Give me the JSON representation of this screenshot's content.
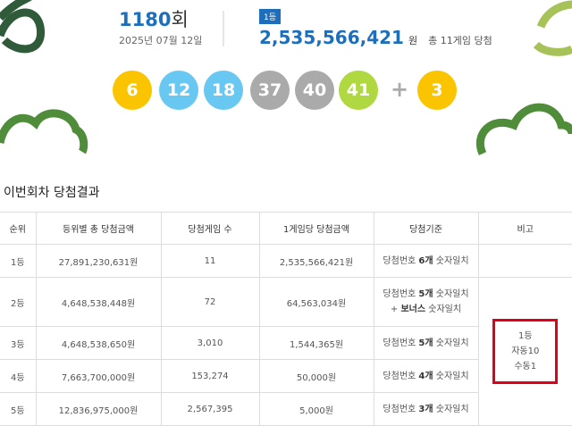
{
  "header": {
    "round_number": "1180",
    "round_suffix": "회",
    "date": "2025년 07월 12일",
    "badge": "1등",
    "prize": "2,535,566,421",
    "prize_unit": "원",
    "winners_note": "총 11게임 당첨"
  },
  "balls": [
    {
      "number": "6",
      "color": "#fbc400"
    },
    {
      "number": "12",
      "color": "#69c8f2"
    },
    {
      "number": "18",
      "color": "#69c8f2"
    },
    {
      "number": "37",
      "color": "#aaaaaa"
    },
    {
      "number": "40",
      "color": "#aaaaaa"
    },
    {
      "number": "41",
      "color": "#b0d840"
    }
  ],
  "plus": "+",
  "bonus": {
    "number": "3",
    "color": "#fbc400"
  },
  "section_title": "이번회차 당첨결과",
  "table": {
    "headers": [
      "순위",
      "등위별 총 당첨금액",
      "당첨게임 수",
      "1게임당 당첨금액",
      "당첨기준",
      "비고"
    ],
    "rows": [
      {
        "rank": "1등",
        "total": "27,891,230,631원",
        "games": "11",
        "per_game": "2,535,566,421원",
        "criteria": [
          [
            {
              "text": "당첨번호 ",
              "bold": false
            },
            {
              "text": "6개",
              "bold": true
            },
            {
              "text": " 숫자일치",
              "bold": false
            }
          ]
        ]
      },
      {
        "rank": "2등",
        "total": "4,648,538,448원",
        "games": "72",
        "per_game": "64,563,034원",
        "criteria": [
          [
            {
              "text": "당첨번호 ",
              "bold": false
            },
            {
              "text": "5개",
              "bold": true
            },
            {
              "text": " 숫자일치",
              "bold": false
            }
          ],
          [
            {
              "text": "+ ",
              "bold": false
            },
            {
              "text": "보너스",
              "bold": true
            },
            {
              "text": " 숫자일치",
              "bold": false
            }
          ]
        ]
      },
      {
        "rank": "3등",
        "total": "4,648,538,650원",
        "games": "3,010",
        "per_game": "1,544,365원",
        "criteria": [
          [
            {
              "text": "당첨번호 ",
              "bold": false
            },
            {
              "text": "5개",
              "bold": true
            },
            {
              "text": " 숫자일치",
              "bold": false
            }
          ]
        ]
      },
      {
        "rank": "4등",
        "total": "7,663,700,000원",
        "games": "153,274",
        "per_game": "50,000원",
        "criteria": [
          [
            {
              "text": "당첨번호 ",
              "bold": false
            },
            {
              "text": "4개",
              "bold": true
            },
            {
              "text": " 숫자일치",
              "bold": false
            }
          ]
        ]
      },
      {
        "rank": "5등",
        "total": "12,836,975,000원",
        "games": "2,567,395",
        "per_game": "5,000원",
        "criteria": [
          [
            {
              "text": "당첨번호 ",
              "bold": false
            },
            {
              "text": "3개",
              "bold": true
            },
            {
              "text": " 숫자일치",
              "bold": false
            }
          ]
        ]
      }
    ],
    "note": [
      "1등",
      "자동10",
      "수동1"
    ]
  }
}
